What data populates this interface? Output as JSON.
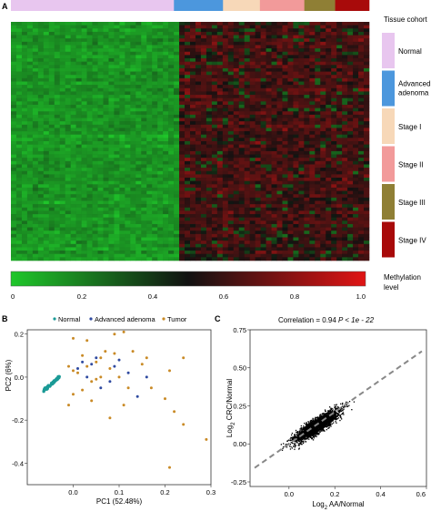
{
  "panels": {
    "a": "A",
    "b": "B",
    "c": "C"
  },
  "colors": {
    "normal": "#e8c6ef",
    "advanced_adenoma": "#4c97dd",
    "stage1": "#f7d8b8",
    "stage2": "#f29a9a",
    "stage3": "#8f7f35",
    "stage4": "#a80a0a",
    "pca_normal": "#1a9a96",
    "pca_adenoma": "#2f4aa0",
    "pca_tumor": "#c98a26",
    "heat_low": "#1fc72a",
    "heat_mid": "#111111",
    "heat_high": "#e01414"
  },
  "legend": {
    "title": "Tissue cohort",
    "items": [
      {
        "key": "normal",
        "label": "Normal"
      },
      {
        "key": "advanced_adenoma",
        "label": "Advanced adenoma"
      },
      {
        "key": "stage1",
        "label": "Stage I"
      },
      {
        "key": "stage2",
        "label": "Stage II"
      },
      {
        "key": "stage3",
        "label": "Stage III"
      },
      {
        "key": "stage4",
        "label": "Stage IV"
      }
    ]
  },
  "chart_data": [
    {
      "panel": "A",
      "type": "heatmap",
      "cohort_fractions": [
        {
          "key": "normal",
          "fraction": 0.455
        },
        {
          "key": "advanced_adenoma",
          "fraction": 0.137
        },
        {
          "key": "stage1",
          "fraction": 0.103
        },
        {
          "key": "stage2",
          "fraction": 0.124
        },
        {
          "key": "stage3",
          "fraction": 0.086
        },
        {
          "key": "stage4",
          "fraction": 0.095
        }
      ],
      "colorbar": {
        "ticks": [
          "0",
          "0.2",
          "0.4",
          "0.6",
          "0.8",
          "1.0"
        ],
        "label_line1": "Methylation",
        "label_line2": "level",
        "range": [
          0,
          1
        ]
      }
    },
    {
      "panel": "B",
      "type": "scatter",
      "legend": [
        "Normal",
        "Advanced adenoma",
        "Tumor"
      ],
      "xlabel": "PC1 (52.48%)",
      "ylabel": "PC2 (6%)",
      "xlim": [
        -0.1,
        0.3
      ],
      "ylim": [
        -0.5,
        0.22
      ],
      "xticks": [
        "0.0",
        "0.1",
        "0.2",
        "0.3"
      ],
      "yticks": [
        "0.2",
        "0.0",
        "-0.2",
        "-0.4"
      ],
      "series": [
        {
          "name": "Normal",
          "color_key": "pca_normal",
          "cluster": {
            "x": [
              -0.065,
              -0.028
            ],
            "y": [
              -0.065,
              0.005
            ],
            "count": 70
          }
        },
        {
          "name": "Advanced adenoma",
          "color_key": "pca_adenoma",
          "points": [
            [
              0.02,
              0.07
            ],
            [
              0.05,
              0.09
            ],
            [
              0.09,
              0.05
            ],
            [
              0.12,
              0.02
            ],
            [
              0.03,
              0.0
            ],
            [
              0.14,
              -0.09
            ],
            [
              0.01,
              0.04
            ],
            [
              0.08,
              -0.02
            ],
            [
              0.04,
              0.06
            ],
            [
              0.1,
              0.08
            ],
            [
              0.16,
              0.0
            ],
            [
              0.06,
              -0.05
            ]
          ]
        },
        {
          "name": "Tumor",
          "color_key": "pca_tumor",
          "points": [
            [
              0.0,
              0.18
            ],
            [
              0.03,
              0.17
            ],
            [
              0.09,
              0.2
            ],
            [
              0.11,
              0.21
            ],
            [
              0.02,
              0.1
            ],
            [
              0.06,
              0.09
            ],
            [
              0.05,
              0.07
            ],
            [
              0.07,
              0.12
            ],
            [
              -0.01,
              0.05
            ],
            [
              0.0,
              0.03
            ],
            [
              0.01,
              0.02
            ],
            [
              0.04,
              -0.02
            ],
            [
              0.05,
              -0.01
            ],
            [
              0.08,
              0.04
            ],
            [
              0.09,
              0.11
            ],
            [
              0.1,
              0.0
            ],
            [
              0.12,
              -0.05
            ],
            [
              0.15,
              0.06
            ],
            [
              0.17,
              -0.05
            ],
            [
              0.16,
              0.09
            ],
            [
              0.21,
              0.03
            ],
            [
              0.24,
              0.09
            ],
            [
              0.2,
              -0.1
            ],
            [
              0.22,
              -0.16
            ],
            [
              0.24,
              -0.22
            ],
            [
              0.29,
              -0.29
            ],
            [
              0.21,
              -0.42
            ],
            [
              0.08,
              -0.19
            ],
            [
              0.04,
              -0.11
            ],
            [
              0.02,
              -0.06
            ],
            [
              0.0,
              -0.08
            ],
            [
              -0.01,
              -0.13
            ],
            [
              0.11,
              -0.13
            ],
            [
              0.06,
              0.0
            ],
            [
              0.13,
              0.12
            ],
            [
              0.03,
              0.05
            ]
          ]
        }
      ]
    },
    {
      "panel": "C",
      "type": "scatter",
      "title_left": "Correlation = 0.94",
      "title_right": "P < 1e - 22",
      "xlabel_prefix": "Log",
      "xlabel_sub": "2",
      "xlabel_rest": " AA/Normal",
      "ylabel_prefix": "Log",
      "ylabel_sub": "2",
      "ylabel_rest": " CRC/Normal",
      "xlim": [
        -0.17,
        0.6
      ],
      "ylim": [
        -0.28,
        0.75
      ],
      "xticks": [
        "0.0",
        "0.2",
        "0.4",
        "0.6"
      ],
      "yticks": [
        "0.75",
        "0.50",
        "0.25",
        "0.00",
        "-0.25"
      ],
      "fit_line": {
        "slope": 1.05,
        "intercept": 0.0
      },
      "point_count": 2200
    }
  ]
}
